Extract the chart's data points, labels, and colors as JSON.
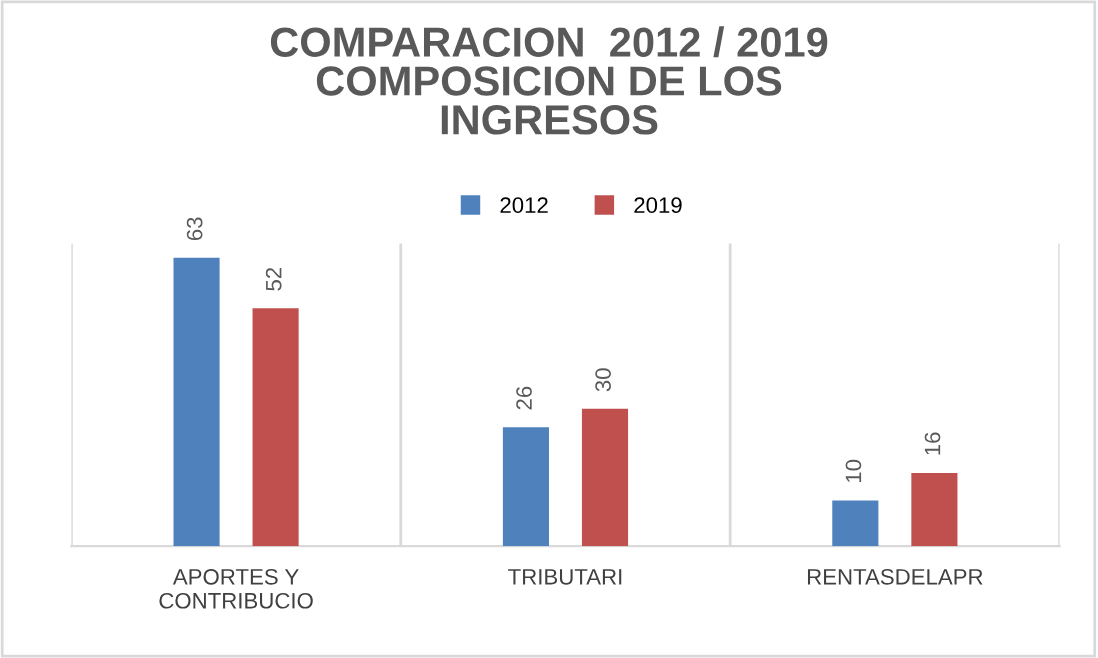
{
  "chart_data": {
    "type": "bar",
    "title": "COMPARACION  2012 / 2019\nCOMPOSICION DE LOS\nINGRESOS",
    "categories": [
      "APORTES Y\nCONTRIBUCIO",
      "TRIBUTARI",
      "RENTASDELAPR"
    ],
    "series": [
      {
        "name": "2012",
        "color": "#4f81bd",
        "values": [
          63,
          26,
          10
        ]
      },
      {
        "name": "2019",
        "color": "#c0504d",
        "values": [
          52,
          30,
          16
        ]
      }
    ],
    "data_labels": true,
    "grid": "x",
    "legend": "top"
  }
}
